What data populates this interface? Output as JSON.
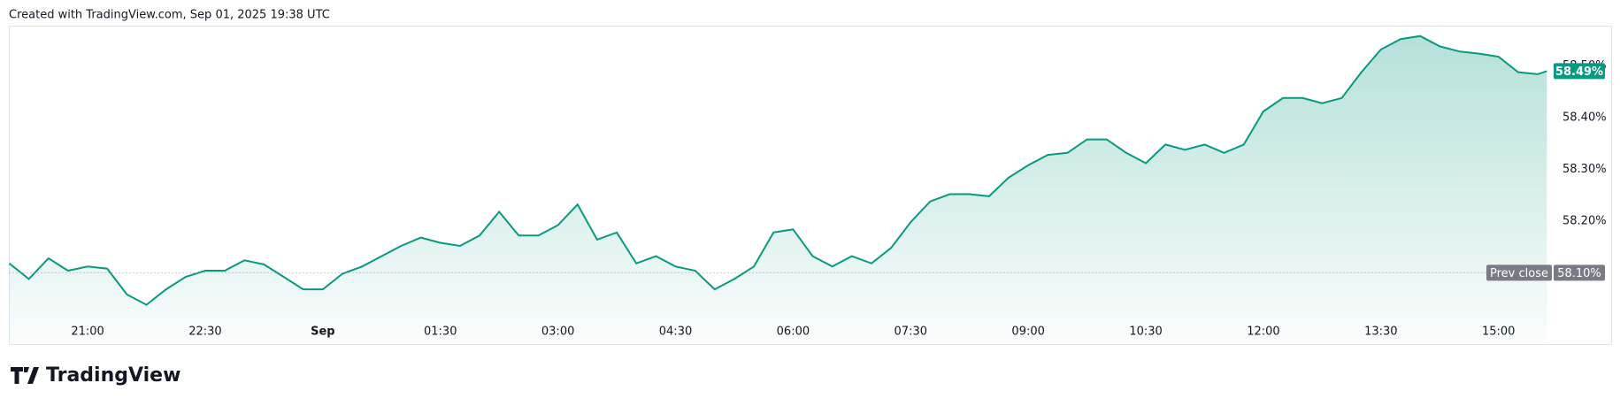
{
  "header": "Created with TradingView.com, Sep 01, 2025 19:38 UTC",
  "logo": "TradingView",
  "chart_data": {
    "type": "area",
    "color": "#089981",
    "x": [
      "20:00",
      "20:15",
      "20:30",
      "20:45",
      "21:00",
      "21:15",
      "21:30",
      "21:45",
      "22:00",
      "22:15",
      "22:30",
      "22:45",
      "23:00",
      "23:15",
      "23:30",
      "23:45",
      "00:00",
      "00:15",
      "00:30",
      "00:45",
      "01:00",
      "01:15",
      "01:30",
      "01:45",
      "02:00",
      "02:15",
      "02:30",
      "02:45",
      "03:00",
      "03:15",
      "03:30",
      "03:45",
      "04:00",
      "04:15",
      "04:30",
      "04:45",
      "05:00",
      "05:15",
      "05:30",
      "05:45",
      "06:00",
      "06:15",
      "06:30",
      "06:45",
      "07:00",
      "07:15",
      "07:30",
      "07:45",
      "08:00",
      "08:15",
      "08:30",
      "08:45",
      "09:00",
      "09:15",
      "09:30",
      "09:45",
      "10:00",
      "10:15",
      "10:30",
      "10:45",
      "11:00",
      "11:15",
      "11:30",
      "11:45",
      "12:00",
      "12:15",
      "12:30",
      "12:45",
      "13:00",
      "13:15",
      "13:30",
      "13:45",
      "14:00",
      "14:15",
      "14:30",
      "14:45",
      "15:00",
      "15:15",
      "15:30",
      "15:37"
    ],
    "values": [
      58.118,
      58.088,
      58.128,
      58.104,
      58.112,
      58.108,
      58.058,
      58.038,
      58.068,
      58.092,
      58.104,
      58.104,
      58.124,
      58.116,
      58.092,
      58.068,
      58.068,
      58.098,
      58.112,
      58.132,
      58.152,
      58.168,
      58.158,
      58.152,
      58.172,
      58.218,
      58.172,
      58.172,
      58.192,
      58.232,
      58.164,
      58.178,
      58.118,
      58.132,
      58.112,
      58.104,
      58.068,
      58.088,
      58.112,
      58.178,
      58.184,
      58.132,
      58.112,
      58.132,
      58.118,
      58.148,
      58.198,
      58.238,
      58.252,
      58.252,
      58.248,
      58.284,
      58.308,
      58.328,
      58.332,
      58.358,
      58.358,
      58.332,
      58.312,
      58.348,
      58.338,
      58.348,
      58.332,
      58.348,
      58.412,
      58.438,
      58.438,
      58.428,
      58.438,
      58.488,
      58.532,
      58.552,
      58.558,
      58.538,
      58.528,
      58.524,
      58.518,
      58.488,
      58.484,
      58.49
    ],
    "last_label": "58.49%",
    "prev_close": 58.1,
    "prev_close_name": "Prev close",
    "prev_close_label": "58.10%",
    "ylim": [
      57.962,
      58.578
    ],
    "yticks": [
      {
        "value": 58.2,
        "label": "58.20%"
      },
      {
        "value": 58.3,
        "label": "58.30%"
      },
      {
        "value": 58.4,
        "label": "58.40%"
      },
      {
        "value": 58.5,
        "label": "58.50%"
      }
    ],
    "xticks": [
      "21:00",
      "22:30",
      {
        "value": "00:00",
        "label": "Sep"
      },
      "01:30",
      "03:00",
      "04:30",
      "06:00",
      "07:30",
      "09:00",
      "10:30",
      "12:00",
      "13:30",
      "15:00"
    ]
  }
}
